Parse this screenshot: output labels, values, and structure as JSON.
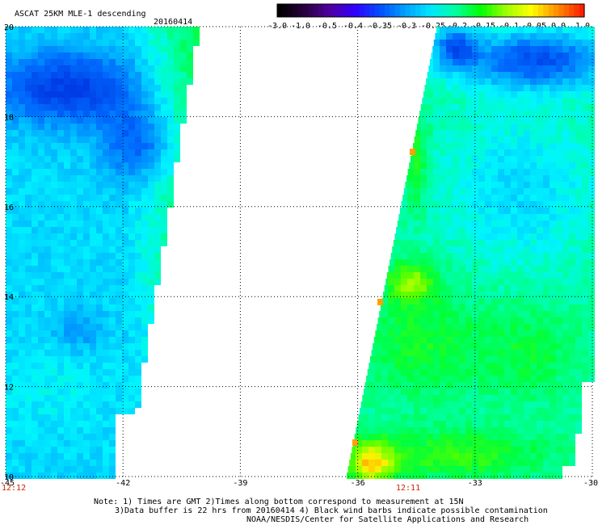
{
  "header": {
    "title": "ASCAT 25KM MLE-1 descending",
    "date": "20160414"
  },
  "colorbar": {
    "labels": [
      "-3.0",
      "-1.0",
      "-0.5",
      "-0.4",
      "-0.35",
      "-0.3",
      "-0.25",
      "-0.2",
      "-0.15",
      "-0.1",
      "-0.05",
      "0.0",
      "1.0"
    ],
    "colors": [
      "#000000",
      "#3a0066",
      "#5a00c8",
      "#0000ff",
      "#0050ff",
      "#00a8ff",
      "#00ffff",
      "#00ff80",
      "#00ff00",
      "#a0ff00",
      "#ffff00",
      "#ff8000",
      "#ff0000"
    ]
  },
  "map": {
    "lat_labels": [
      "20",
      "18",
      "16",
      "14",
      "12",
      "10"
    ],
    "lon_labels": [
      "-45",
      "-42",
      "-39",
      "-36",
      "-33",
      "-30"
    ],
    "lat_range": [
      10,
      20
    ],
    "lon_range": [
      -45,
      -30
    ],
    "gridlines": true
  },
  "times": {
    "left": "12:12",
    "right": "12:11"
  },
  "footer": {
    "line1": "Note: 1) Times are GMT 2)Times along bottom correspond to measurement at 15N",
    "line2": "3)Data buffer is 22 hrs from 20160414 4) Black wind barbs indicate possible contamination",
    "line3": "NOAA/NESDIS/Center for Satellite Applications and Research"
  }
}
